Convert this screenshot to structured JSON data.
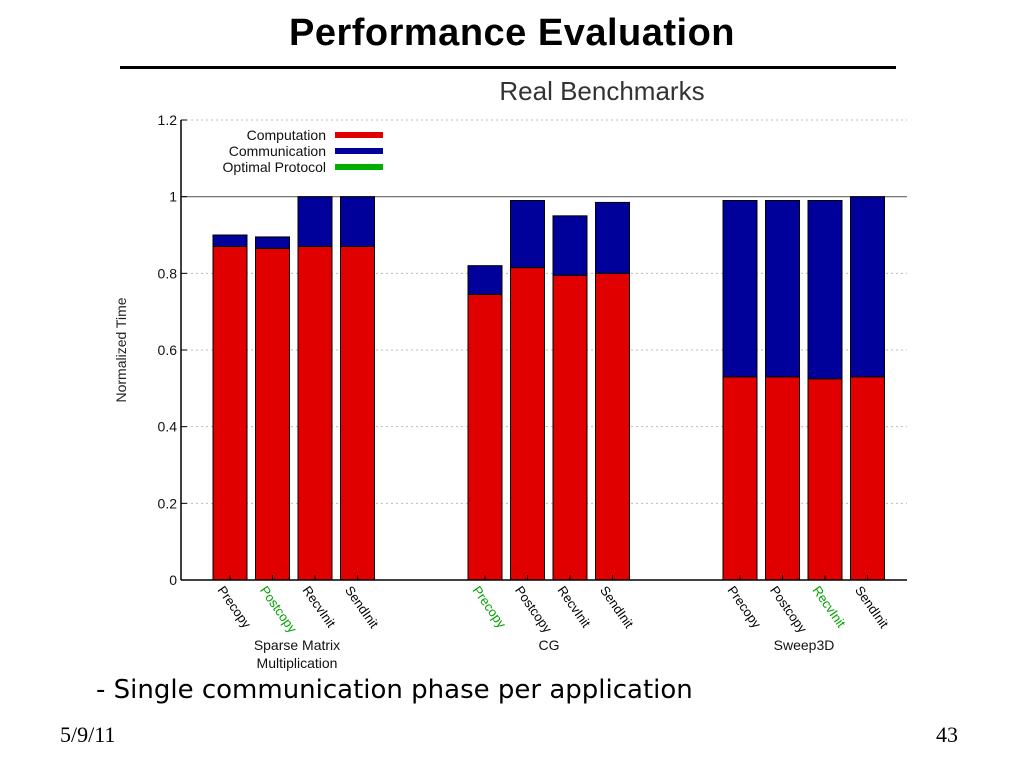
{
  "slide": {
    "title": "Performance Evaluation",
    "bullet": "- Single communication phase per application",
    "date": "5/9/11",
    "page_number": "43"
  },
  "colors": {
    "computation": "#e00000",
    "communication": "#00009a",
    "optimal_protocol": "#00b000",
    "label_default": "#000000",
    "label_optimal": "#00a000"
  },
  "chart_data": {
    "type": "bar",
    "stacked": true,
    "title": "Real Benchmarks",
    "ylabel": "Normalized Time",
    "ylim": [
      0,
      1.2
    ],
    "yticks": [
      "0",
      "0.2",
      "0.4",
      "0.6",
      "0.8",
      "1",
      "1.2"
    ],
    "grid": true,
    "legend_position": "top-left",
    "legend": [
      "Computation",
      "Communication",
      "Optimal Protocol"
    ],
    "groups": [
      {
        "name_lines": [
          "Sparse Matrix",
          "Multiplication"
        ],
        "bars": [
          {
            "label": "Precopy",
            "computation": 0.87,
            "communication": 0.03,
            "optimal": false
          },
          {
            "label": "Postcopy",
            "computation": 0.865,
            "communication": 0.03,
            "optimal": true
          },
          {
            "label": "RecvInit",
            "computation": 0.87,
            "communication": 0.13,
            "optimal": false
          },
          {
            "label": "SendInit",
            "computation": 0.87,
            "communication": 0.13,
            "optimal": false
          }
        ]
      },
      {
        "name_lines": [
          "CG"
        ],
        "bars": [
          {
            "label": "Precopy",
            "computation": 0.745,
            "communication": 0.075,
            "optimal": true
          },
          {
            "label": "Postcopy",
            "computation": 0.815,
            "communication": 0.175,
            "optimal": false
          },
          {
            "label": "RecvInit",
            "computation": 0.795,
            "communication": 0.155,
            "optimal": false
          },
          {
            "label": "SendInit",
            "computation": 0.8,
            "communication": 0.185,
            "optimal": false
          }
        ]
      },
      {
        "name_lines": [
          "Sweep3D"
        ],
        "bars": [
          {
            "label": "Precopy",
            "computation": 0.53,
            "communication": 0.46,
            "optimal": false
          },
          {
            "label": "Postcopy",
            "computation": 0.53,
            "communication": 0.46,
            "optimal": false
          },
          {
            "label": "RecvInit",
            "computation": 0.525,
            "communication": 0.465,
            "optimal": true
          },
          {
            "label": "SendInit",
            "computation": 0.53,
            "communication": 0.47,
            "optimal": false
          }
        ]
      }
    ]
  }
}
